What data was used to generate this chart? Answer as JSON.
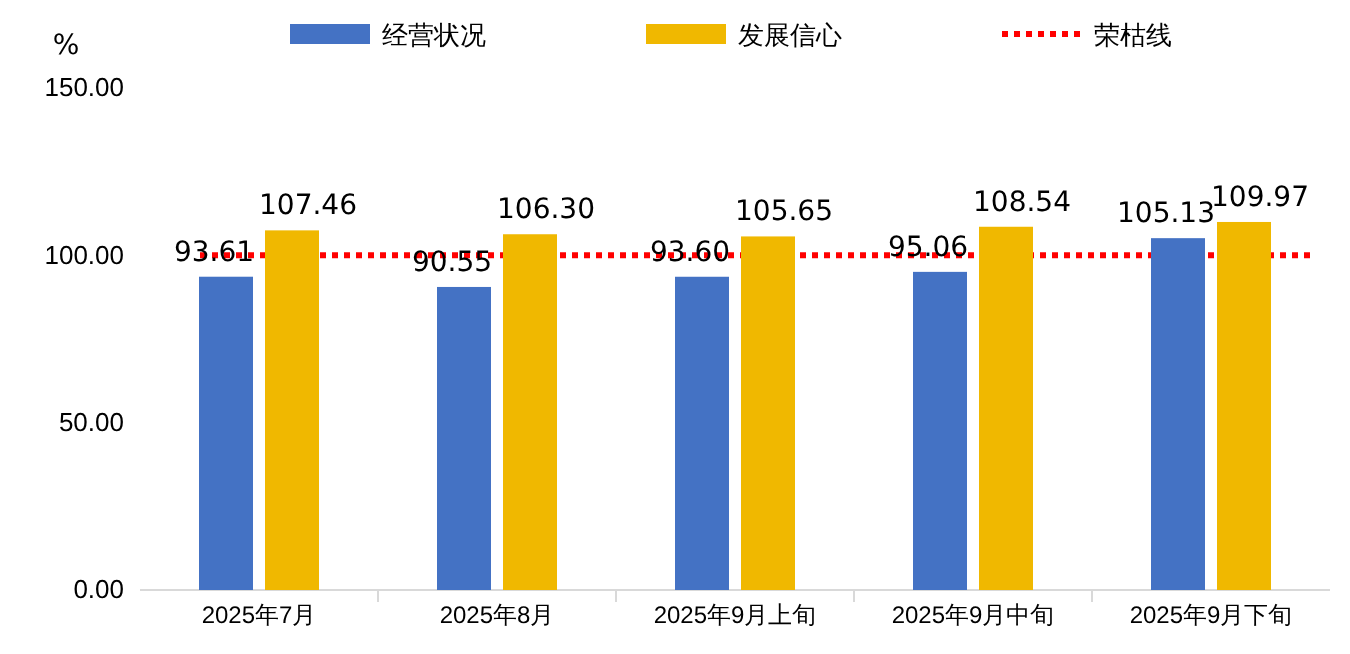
{
  "chart_data": {
    "type": "bar",
    "ylabel": "%",
    "categories": [
      "2025年7月",
      "2025年8月",
      "2025年9月上旬",
      "2025年9月中旬",
      "2025年9月下旬"
    ],
    "series": [
      {
        "name": "经营状况",
        "color": "#4472c4",
        "values": [
          93.61,
          90.55,
          93.6,
          95.06,
          105.13
        ],
        "value_labels": [
          "93.61",
          "90.55",
          "93.60",
          "95.06",
          "105.13"
        ]
      },
      {
        "name": "发展信心",
        "color": "#f0b800",
        "values": [
          107.46,
          106.3,
          105.65,
          108.54,
          109.97
        ],
        "value_labels": [
          "107.46",
          "106.30",
          "105.65",
          "108.54",
          "109.97"
        ]
      }
    ],
    "ref_lines": [
      {
        "axis": "y",
        "value": 100,
        "label": "荣枯线",
        "color": "#ff0000",
        "line_style": "dotted"
      }
    ],
    "ylim": [
      0,
      150
    ],
    "yticks": [
      {
        "value": 0,
        "label": "0.00"
      },
      {
        "value": 50,
        "label": "50.00"
      },
      {
        "value": 100,
        "label": "100.00"
      },
      {
        "value": 150,
        "label": "150.00"
      }
    ],
    "grid": false,
    "legend": "top"
  }
}
